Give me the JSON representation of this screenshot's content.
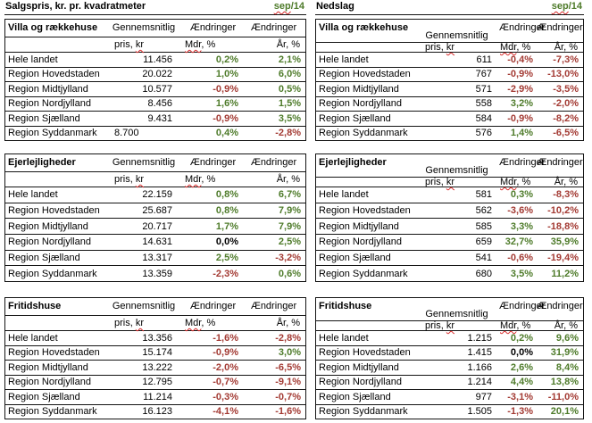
{
  "colors": {
    "positive": "#4e7b2a",
    "negative": "#a33a33",
    "neutral": "#000000",
    "squiggle": "#d92b2b"
  },
  "headers": {
    "avg": "Gennemsnitlig",
    "chg": "Ændringer",
    "price_pre": "pris, ",
    "price_wavy": "kr",
    "mdr_wavy": "Mdr",
    "mdr_post": ", %",
    "yr": "År, %"
  },
  "panels": [
    {
      "title": "Salgspris, kr. pr. kvadratmeter",
      "period_wavy": "sep",
      "period_rest": "/14",
      "sections": [
        {
          "name": "Villa og rækkehuse",
          "rows": [
            {
              "name": "Hele landet",
              "price": "11.456",
              "mdr": "0,2%",
              "mdr_c": "green",
              "yr": "2,1%",
              "yr_c": "green"
            },
            {
              "name": "Region Hovedstaden",
              "price": "20.022",
              "mdr": "1,0%",
              "mdr_c": "green",
              "yr": "6,0%",
              "yr_c": "green"
            },
            {
              "name": "Region Midtjylland",
              "price": "10.577",
              "mdr": "-0,9%",
              "mdr_c": "red",
              "yr": "0,5%",
              "yr_c": "green"
            },
            {
              "name": "Region Nordjylland",
              "price": "8.456",
              "mdr": "1,6%",
              "mdr_c": "green",
              "yr": "1,5%",
              "yr_c": "green"
            },
            {
              "name": "Region Sjælland",
              "price": "9.431",
              "mdr": "-0,9%",
              "mdr_c": "red",
              "yr": "3,5%",
              "yr_c": "green"
            },
            {
              "name": "Region Syddanmark",
              "price": "8.700",
              "price_align": "left",
              "mdr": "0,4%",
              "mdr_c": "green",
              "yr": "-2,8%",
              "yr_c": "red"
            }
          ]
        },
        {
          "name": "Ejerlejligheder",
          "rows": [
            {
              "name": "Hele landet",
              "price": "22.159",
              "mdr": "0,8%",
              "mdr_c": "green",
              "yr": "6,7%",
              "yr_c": "green"
            },
            {
              "name": "Region Hovedstaden",
              "price": "25.687",
              "mdr": "0,8%",
              "mdr_c": "green",
              "yr": "7,9%",
              "yr_c": "green"
            },
            {
              "name": "Region Midtjylland",
              "price": "20.717",
              "mdr": "1,7%",
              "mdr_c": "green",
              "yr": "7,9%",
              "yr_c": "green"
            },
            {
              "name": "Region Nordjylland",
              "price": "14.631",
              "mdr": "0,0%",
              "mdr_c": "black",
              "yr": "2,5%",
              "yr_c": "green"
            },
            {
              "name": "Region Sjælland",
              "price": "13.317",
              "mdr": "2,5%",
              "mdr_c": "green",
              "yr": "-3,2%",
              "yr_c": "red"
            },
            {
              "name": "Region Syddanmark",
              "price": "13.359",
              "mdr": "-2,3%",
              "mdr_c": "red",
              "yr": "0,6%",
              "yr_c": "green"
            }
          ]
        },
        {
          "name": "Fritidshuse",
          "rows": [
            {
              "name": "Hele landet",
              "price": "13.356",
              "mdr": "-1,6%",
              "mdr_c": "red",
              "yr": "-2,8%",
              "yr_c": "red"
            },
            {
              "name": "Region Hovedstaden",
              "price": "15.174",
              "mdr": "-0,9%",
              "mdr_c": "red",
              "yr": "3,0%",
              "yr_c": "green"
            },
            {
              "name": "Region Midtjylland",
              "price": "13.222",
              "mdr": "-2,0%",
              "mdr_c": "red",
              "yr": "-6,5%",
              "yr_c": "red"
            },
            {
              "name": "Region Nordjylland",
              "price": "12.795",
              "mdr": "-0,7%",
              "mdr_c": "red",
              "yr": "-9,1%",
              "yr_c": "red"
            },
            {
              "name": "Region Sjælland",
              "price": "11.214",
              "mdr": "-0,3%",
              "mdr_c": "red",
              "yr": "-0,7%",
              "yr_c": "red"
            },
            {
              "name": "Region Syddanmark",
              "price": "16.123",
              "mdr": "-4,1%",
              "mdr_c": "red",
              "yr": "-1,6%",
              "yr_c": "red"
            }
          ]
        }
      ]
    },
    {
      "title": "Nedslag",
      "period_wavy": "sep",
      "period_rest": "/14",
      "sections": [
        {
          "name": "Villa og rækkehuse",
          "rows": [
            {
              "name": "Hele landet",
              "price": "611",
              "mdr": "-0,4%",
              "mdr_c": "red",
              "yr": "-7,3%",
              "yr_c": "red"
            },
            {
              "name": "Region Hovedstaden",
              "price": "767",
              "mdr": "-0,9%",
              "mdr_c": "red",
              "yr": "-13,0%",
              "yr_c": "red"
            },
            {
              "name": "Region Midtjylland",
              "price": "571",
              "mdr": "-2,9%",
              "mdr_c": "red",
              "yr": "-3,5%",
              "yr_c": "red"
            },
            {
              "name": "Region Nordjylland",
              "price": "558",
              "mdr": "3,2%",
              "mdr_c": "green",
              "yr": "-2,0%",
              "yr_c": "red"
            },
            {
              "name": "Region Sjælland",
              "price": "584",
              "mdr": "-0,9%",
              "mdr_c": "red",
              "yr": "-8,2%",
              "yr_c": "red"
            },
            {
              "name": "Region Syddanmark",
              "price": "576",
              "mdr": "1,4%",
              "mdr_c": "green",
              "yr": "-6,5%",
              "yr_c": "red"
            }
          ]
        },
        {
          "name": "Ejerlejligheder",
          "rows": [
            {
              "name": "Hele landet",
              "price": "581",
              "mdr": "0,3%",
              "mdr_c": "green",
              "yr": "-8,3%",
              "yr_c": "red"
            },
            {
              "name": "Region Hovedstaden",
              "price": "562",
              "mdr": "-3,6%",
              "mdr_c": "red",
              "yr": "-10,2%",
              "yr_c": "red"
            },
            {
              "name": "Region Midtjylland",
              "price": "585",
              "mdr": "3,3%",
              "mdr_c": "green",
              "yr": "-18,8%",
              "yr_c": "red"
            },
            {
              "name": "Region Nordjylland",
              "price": "659",
              "mdr": "32,7%",
              "mdr_c": "green",
              "yr": "35,9%",
              "yr_c": "green"
            },
            {
              "name": "Region Sjælland",
              "price": "541",
              "mdr": "-0,6%",
              "mdr_c": "red",
              "yr": "-19,4%",
              "yr_c": "red"
            },
            {
              "name": "Region Syddanmark",
              "price": "680",
              "mdr": "3,5%",
              "mdr_c": "green",
              "yr": "11,2%",
              "yr_c": "green"
            }
          ]
        },
        {
          "name": "Fritidshuse",
          "rows": [
            {
              "name": "Hele landet",
              "price": "1.215",
              "mdr": "0,2%",
              "mdr_c": "green",
              "yr": "9,6%",
              "yr_c": "green"
            },
            {
              "name": "Region Hovedstaden",
              "price": "1.415",
              "mdr": "0,0%",
              "mdr_c": "black",
              "yr": "31,9%",
              "yr_c": "green"
            },
            {
              "name": "Region Midtjylland",
              "price": "1.166",
              "mdr": "2,6%",
              "mdr_c": "green",
              "yr": "8,4%",
              "yr_c": "green"
            },
            {
              "name": "Region Nordjylland",
              "price": "1.214",
              "mdr": "4,4%",
              "mdr_c": "green",
              "yr": "13,8%",
              "yr_c": "green"
            },
            {
              "name": "Region Sjælland",
              "price": "977",
              "mdr": "-3,1%",
              "mdr_c": "red",
              "yr": "-11,0%",
              "yr_c": "red"
            },
            {
              "name": "Region Syddanmark",
              "price": "1.505",
              "mdr": "-1,3%",
              "mdr_c": "red",
              "yr": "20,1%",
              "yr_c": "green"
            }
          ]
        }
      ]
    }
  ]
}
